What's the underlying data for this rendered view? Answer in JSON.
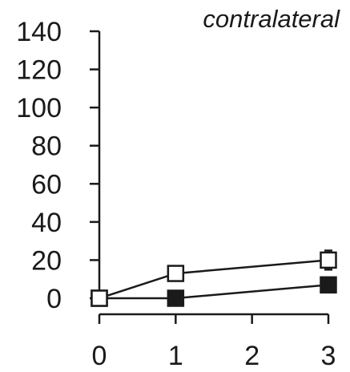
{
  "chart_data": {
    "type": "line",
    "title": "contralateral",
    "xlabel": "",
    "ylabel": "",
    "x": [
      0,
      1,
      2,
      3
    ],
    "x_ticks": [
      "0",
      "1",
      "2",
      "3"
    ],
    "y_ticks": [
      "0",
      "20",
      "40",
      "60",
      "80",
      "100",
      "120",
      "140"
    ],
    "ylim": [
      0,
      140
    ],
    "xlim": [
      0,
      3
    ],
    "grid": false,
    "series": [
      {
        "marker": "open-square",
        "color": "#1a1a1a",
        "fill": "#ffffff",
        "points": [
          {
            "x": 0,
            "y": 0,
            "err": 0
          },
          {
            "x": 1,
            "y": 13,
            "err": 0
          },
          {
            "x": 3,
            "y": 20,
            "err": 5
          }
        ]
      },
      {
        "marker": "filled-square",
        "color": "#1a1a1a",
        "fill": "#1a1a1a",
        "points": [
          {
            "x": 0,
            "y": 0,
            "err": 0
          },
          {
            "x": 1,
            "y": 0,
            "err": 0
          },
          {
            "x": 3,
            "y": 7,
            "err": 0
          }
        ]
      }
    ]
  }
}
